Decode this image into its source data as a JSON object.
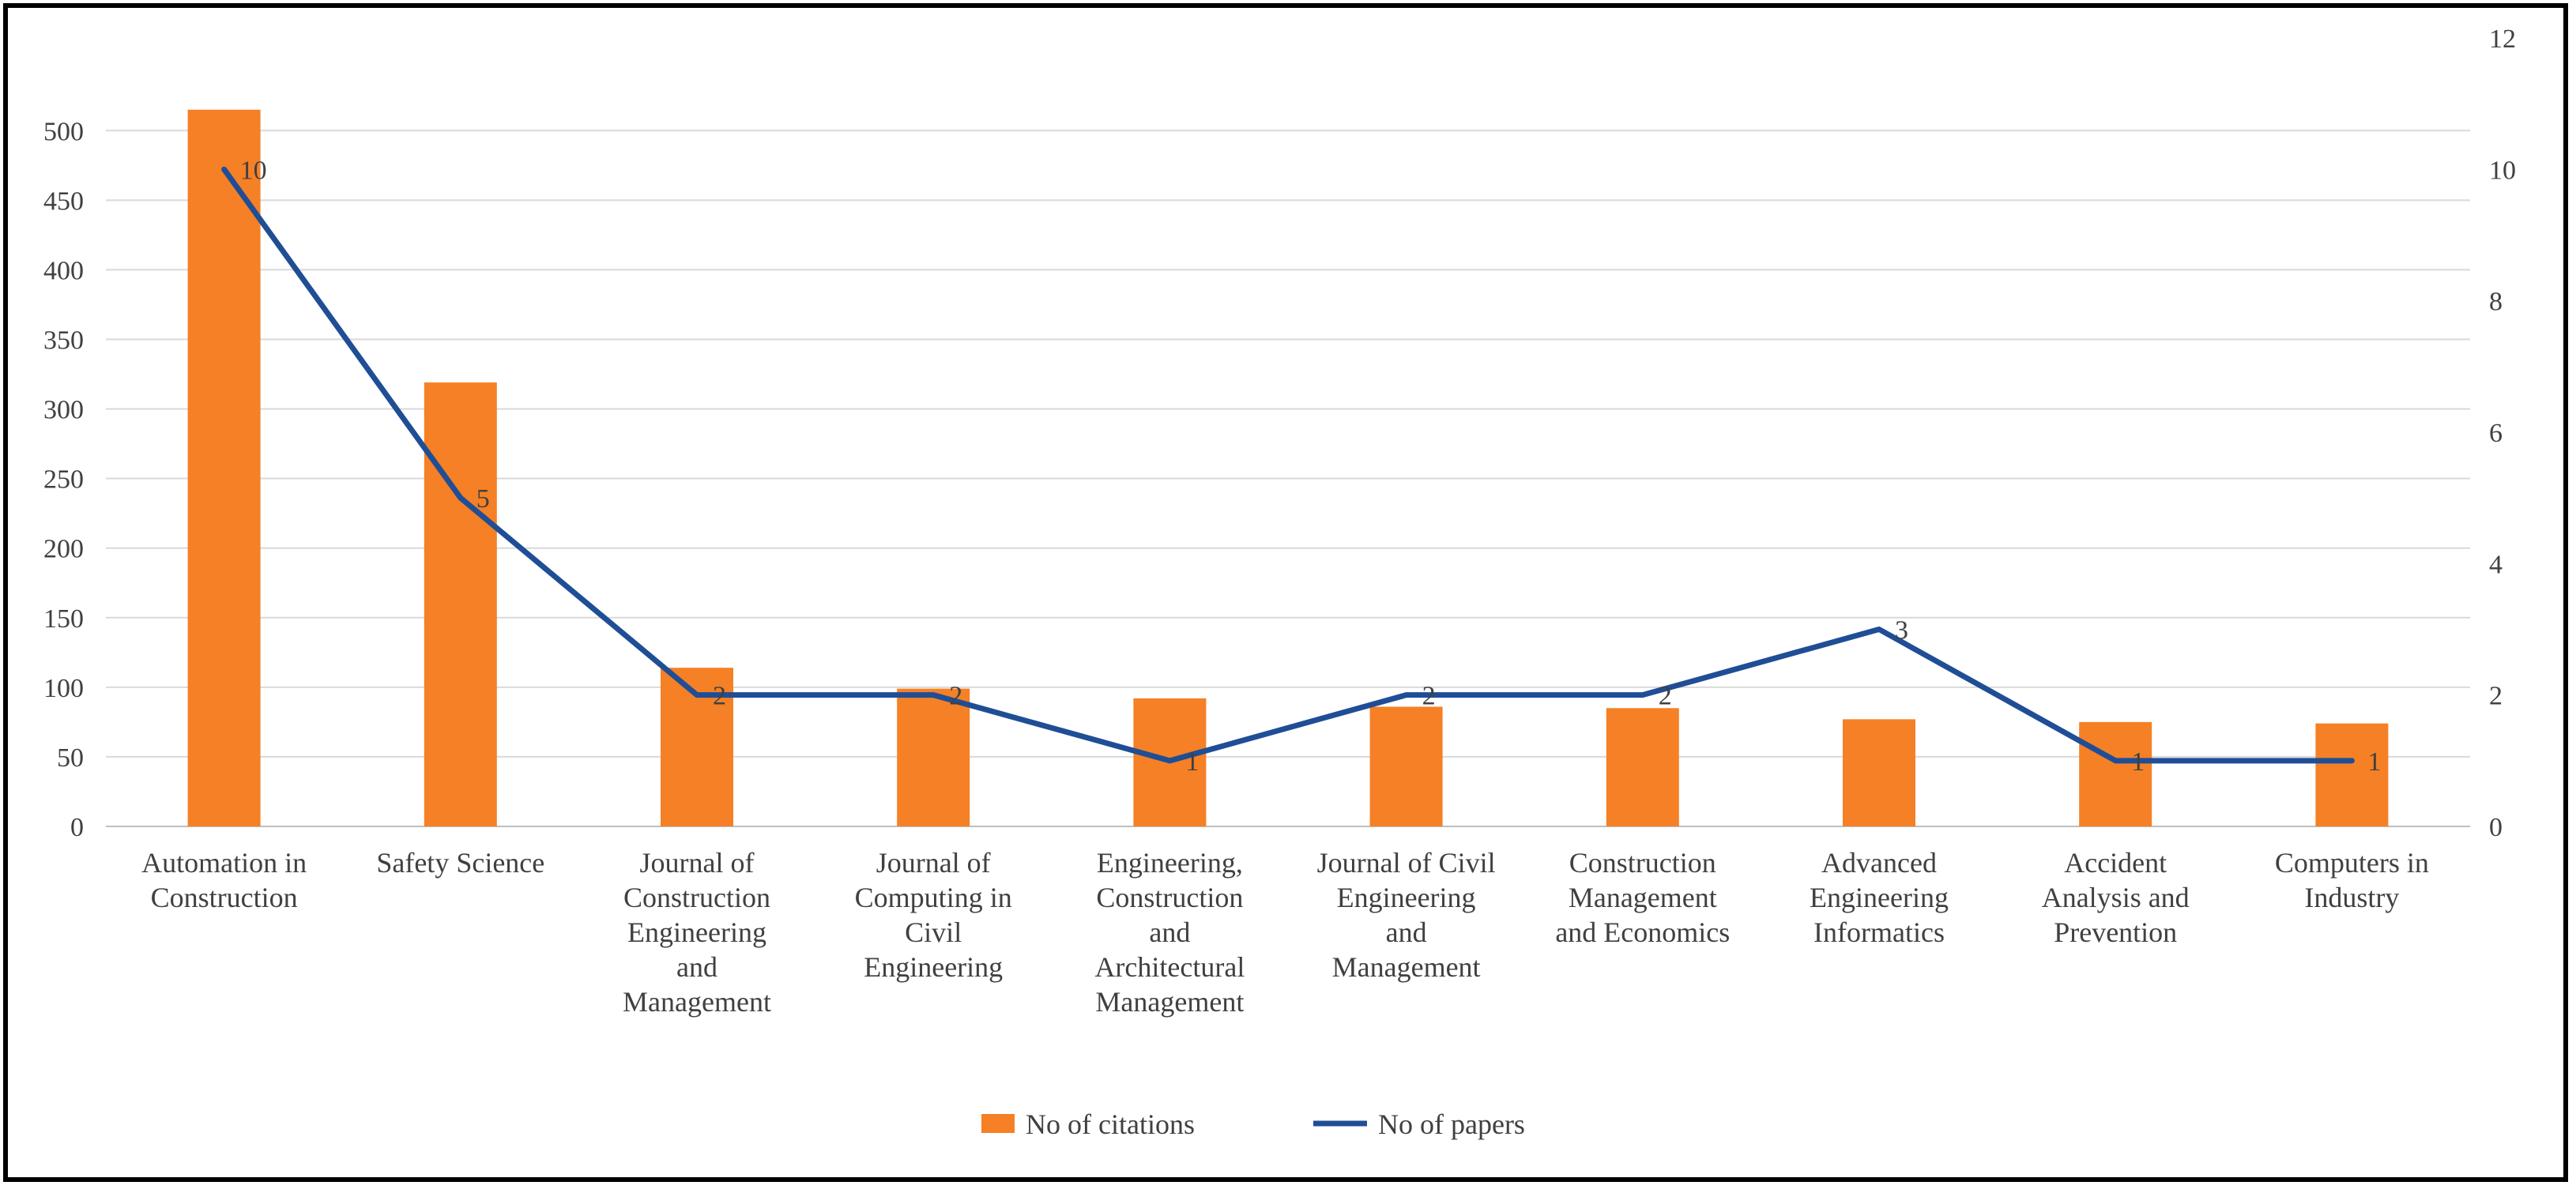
{
  "chart_data": {
    "type": "bar",
    "categories": [
      [
        "Automation in",
        "Construction"
      ],
      [
        "Safety Science"
      ],
      [
        "Journal of",
        "Construction",
        "Engineering",
        "and",
        "Management"
      ],
      [
        "Journal of",
        "Computing in",
        "Civil",
        "Engineering"
      ],
      [
        "Engineering,",
        "Construction",
        "and",
        "Architectural",
        "Management"
      ],
      [
        "Journal of Civil",
        "Engineering",
        "and",
        "Management"
      ],
      [
        "Construction",
        "Management",
        "and Economics"
      ],
      [
        "Advanced",
        "Engineering",
        "Informatics"
      ],
      [
        "Accident",
        "Analysis and",
        "Prevention"
      ],
      [
        "Computers in",
        "Industry"
      ]
    ],
    "series": [
      {
        "name": "No of citations",
        "type": "bar",
        "axis": "left",
        "color": "#f58025",
        "values": [
          515,
          319,
          114,
          99,
          92,
          86,
          85,
          77,
          75,
          74
        ]
      },
      {
        "name": "No of papers",
        "type": "line",
        "axis": "right",
        "color": "#1f4e96",
        "values": [
          10,
          5,
          2,
          2,
          1,
          2,
          2,
          3,
          1,
          1
        ]
      }
    ],
    "y_left": {
      "min": 0,
      "max": 500,
      "step": 50,
      "ticks": [
        "0",
        "50",
        "100",
        "150",
        "200",
        "250",
        "300",
        "350",
        "400",
        "450",
        "500"
      ]
    },
    "y_right": {
      "min": 0,
      "max": 12,
      "step": 2,
      "ticks": [
        "0",
        "2",
        "4",
        "6",
        "8",
        "10",
        "12"
      ]
    },
    "grid": true,
    "legend": {
      "position": "bottom",
      "items": [
        "No of citations",
        "No of papers"
      ]
    }
  }
}
